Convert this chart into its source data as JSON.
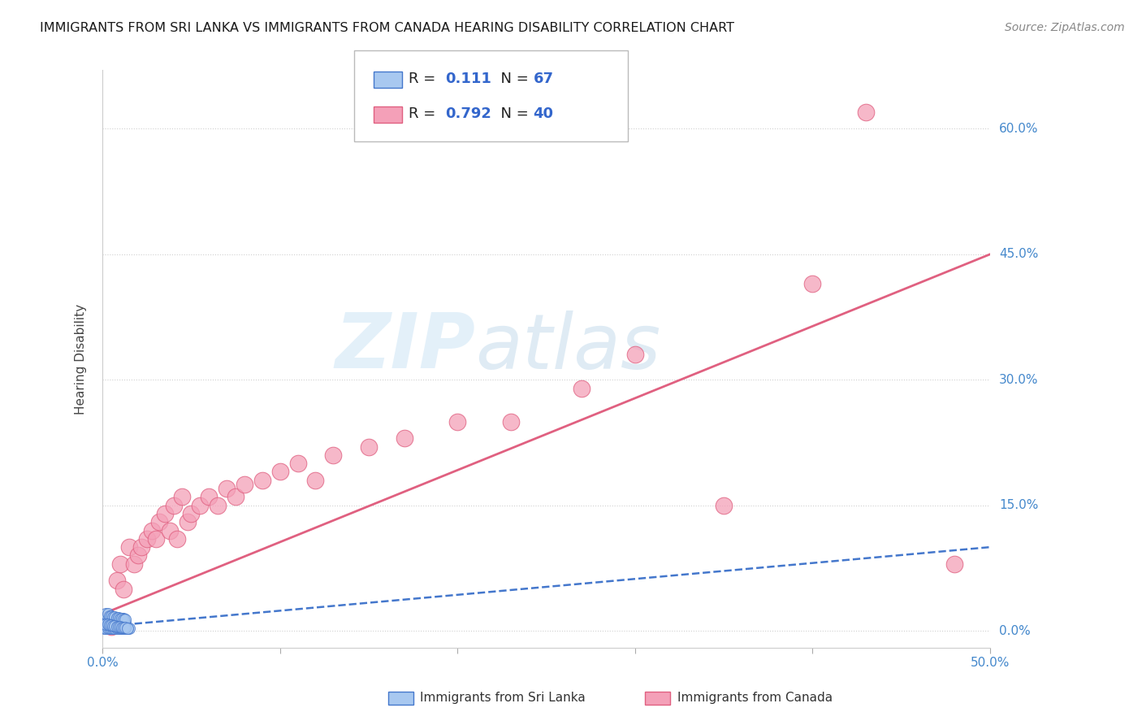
{
  "title": "IMMIGRANTS FROM SRI LANKA VS IMMIGRANTS FROM CANADA HEARING DISABILITY CORRELATION CHART",
  "source": "Source: ZipAtlas.com",
  "ylabel_label": "Hearing Disability",
  "xlim": [
    0.0,
    0.5
  ],
  "ylim": [
    -0.02,
    0.67
  ],
  "xticks": [
    0.0,
    0.1,
    0.2,
    0.3,
    0.4,
    0.5
  ],
  "xtick_labels": [
    "0.0%",
    "",
    "",
    "",
    "",
    "50.0%"
  ],
  "yticks": [
    0.0,
    0.15,
    0.3,
    0.45,
    0.6
  ],
  "ytick_labels_right": [
    "0.0%",
    "15.0%",
    "30.0%",
    "45.0%",
    "60.0%"
  ],
  "sri_lanka_R": 0.111,
  "sri_lanka_N": 67,
  "canada_R": 0.792,
  "canada_N": 40,
  "sri_lanka_color": "#a8c8f0",
  "canada_color": "#f4a0b8",
  "sri_lanka_edge_color": "#4477cc",
  "canada_edge_color": "#e06080",
  "sri_lanka_line_color": "#4477cc",
  "canada_line_color": "#e06080",
  "sri_lanka_x": [
    0.001,
    0.002,
    0.002,
    0.003,
    0.003,
    0.003,
    0.004,
    0.004,
    0.004,
    0.005,
    0.005,
    0.005,
    0.006,
    0.006,
    0.007,
    0.007,
    0.008,
    0.008,
    0.009,
    0.009,
    0.01,
    0.01,
    0.011,
    0.011,
    0.012,
    0.012,
    0.013,
    0.001,
    0.002,
    0.003,
    0.004,
    0.005,
    0.006,
    0.007,
    0.008,
    0.009,
    0.01,
    0.011,
    0.012,
    0.013,
    0.014,
    0.015,
    0.002,
    0.003,
    0.004,
    0.005,
    0.006,
    0.007,
    0.008,
    0.009,
    0.01,
    0.011,
    0.012,
    0.013,
    0.002,
    0.003,
    0.004,
    0.005,
    0.006,
    0.007,
    0.008,
    0.009,
    0.01,
    0.011,
    0.012,
    0.013,
    0.014
  ],
  "sri_lanka_y": [
    0.005,
    0.005,
    0.01,
    0.005,
    0.01,
    0.015,
    0.005,
    0.01,
    0.015,
    0.005,
    0.01,
    0.015,
    0.01,
    0.015,
    0.01,
    0.015,
    0.01,
    0.015,
    0.01,
    0.015,
    0.01,
    0.015,
    0.01,
    0.015,
    0.01,
    0.015,
    0.01,
    0.003,
    0.003,
    0.003,
    0.003,
    0.003,
    0.003,
    0.003,
    0.003,
    0.003,
    0.003,
    0.003,
    0.003,
    0.003,
    0.003,
    0.003,
    0.02,
    0.02,
    0.018,
    0.018,
    0.017,
    0.017,
    0.016,
    0.016,
    0.015,
    0.015,
    0.014,
    0.014,
    0.008,
    0.008,
    0.007,
    0.007,
    0.006,
    0.006,
    0.005,
    0.005,
    0.005,
    0.004,
    0.004,
    0.004,
    0.003
  ],
  "canada_x": [
    0.005,
    0.008,
    0.01,
    0.012,
    0.015,
    0.018,
    0.02,
    0.022,
    0.025,
    0.028,
    0.03,
    0.032,
    0.035,
    0.038,
    0.04,
    0.042,
    0.045,
    0.048,
    0.05,
    0.055,
    0.06,
    0.065,
    0.07,
    0.075,
    0.08,
    0.09,
    0.1,
    0.11,
    0.12,
    0.13,
    0.15,
    0.17,
    0.2,
    0.23,
    0.27,
    0.3,
    0.35,
    0.4,
    0.43,
    0.48
  ],
  "canada_y": [
    0.005,
    0.06,
    0.08,
    0.05,
    0.1,
    0.08,
    0.09,
    0.1,
    0.11,
    0.12,
    0.11,
    0.13,
    0.14,
    0.12,
    0.15,
    0.11,
    0.16,
    0.13,
    0.14,
    0.15,
    0.16,
    0.15,
    0.17,
    0.16,
    0.175,
    0.18,
    0.19,
    0.2,
    0.18,
    0.21,
    0.22,
    0.23,
    0.25,
    0.25,
    0.29,
    0.33,
    0.15,
    0.415,
    0.62,
    0.08
  ],
  "canada_line_start_x": 0.0,
  "canada_line_start_y": 0.02,
  "canada_line_end_x": 0.5,
  "canada_line_end_y": 0.45,
  "sl_line_start_x": 0.0,
  "sl_line_start_y": 0.005,
  "sl_line_end_x": 0.5,
  "sl_line_end_y": 0.1,
  "watermark_zip": "ZIP",
  "watermark_atlas": "atlas",
  "grid_color": "#d0d0d0",
  "background_color": "#ffffff"
}
